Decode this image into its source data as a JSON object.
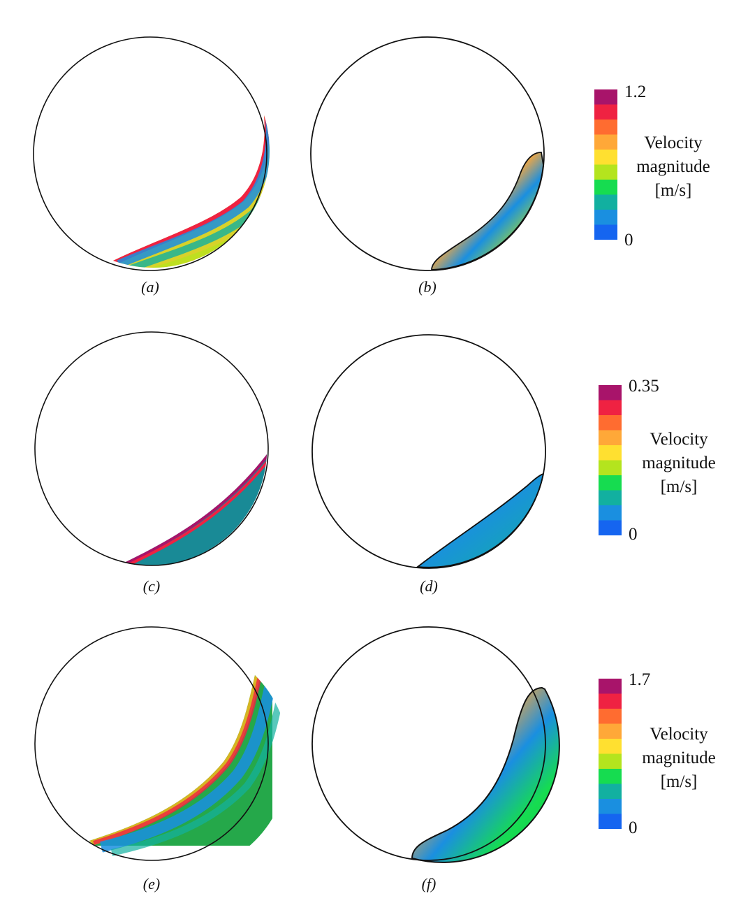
{
  "figure": {
    "panels": [
      {
        "id": "a",
        "label": "(a)"
      },
      {
        "id": "b",
        "label": "(b)"
      },
      {
        "id": "c",
        "label": "(c)"
      },
      {
        "id": "d",
        "label": "(d)"
      },
      {
        "id": "e",
        "label": "(e)"
      },
      {
        "id": "f",
        "label": "(f)"
      }
    ],
    "colorbars": [
      {
        "max_label": "1.2",
        "min_label": "0",
        "title_lines": [
          "Velocity",
          "magnitude",
          "[m/s]"
        ]
      },
      {
        "max_label": "0.35",
        "min_label": "0",
        "title_lines": [
          "Velocity",
          "magnitude",
          "[m/s]"
        ]
      },
      {
        "max_label": "1.7",
        "min_label": "0",
        "title_lines": [
          "Velocity",
          "magnitude",
          "[m/s]"
        ]
      }
    ],
    "colors": {
      "colormap": [
        "#1565f0",
        "#1a8fe0",
        "#12b0a0",
        "#16dc50",
        "#b4e41e",
        "#ffe030",
        "#ffa838",
        "#ff6c30",
        "#ef2242",
        "#a8146a"
      ],
      "outline": "#111111"
    }
  }
}
